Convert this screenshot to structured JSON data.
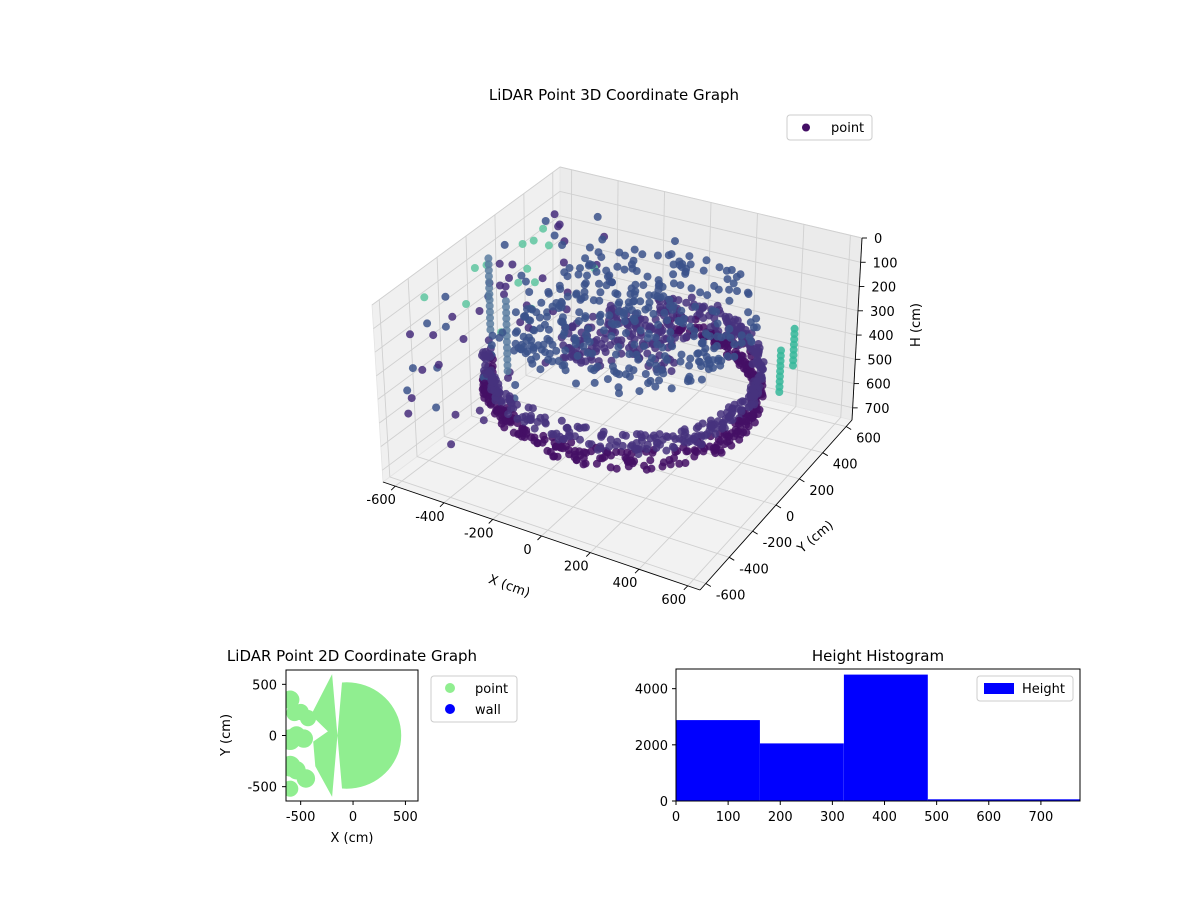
{
  "chart_data": [
    {
      "type": "scatter3d",
      "title": "LiDAR Point 3D Coordinate Graph",
      "xlabel": "X (cm)",
      "ylabel": "Y (cm)",
      "zlabel": "H (cm)",
      "xticks": [
        -600,
        -400,
        -200,
        0,
        200,
        400,
        600
      ],
      "yticks": [
        -600,
        -400,
        -200,
        0,
        200,
        400,
        600
      ],
      "zticks": [
        0,
        100,
        200,
        300,
        400,
        500,
        600,
        700
      ],
      "xlim": [
        -650,
        650
      ],
      "ylim": [
        -650,
        650
      ],
      "zlim": [
        0,
        750
      ],
      "z_inverted": true,
      "grid": true,
      "legend": {
        "placement": "top-right",
        "entries": [
          {
            "label": "point",
            "color": "#440f65"
          }
        ]
      },
      "structures": {
        "wall_ring": {
          "radius": 500,
          "angle_from_deg": -165,
          "angle_to_deg": 105,
          "h_from": 320,
          "h_to": 480
        },
        "floor_disc": {
          "radius": 500,
          "h": 120
        },
        "left_columns": [
          {
            "x": -500,
            "y": -100,
            "h_from": 0,
            "h_to": 300
          },
          {
            "x": -300,
            "y": -330,
            "h_from": 0,
            "h_to": 320
          }
        ],
        "right_columns": [
          {
            "x": 500,
            "y": 300,
            "h_from": 300,
            "h_to": 480
          },
          {
            "x": 480,
            "y": 450,
            "h_from": 300,
            "h_to": 460
          }
        ]
      }
    },
    {
      "type": "scatter",
      "title": "LiDAR Point 2D Coordinate Graph",
      "xlabel": "X (cm)",
      "ylabel": "Y (cm)",
      "xlim": [
        -640,
        620
      ],
      "ylim": [
        -640,
        640
      ],
      "xticks": [
        -500,
        0,
        500
      ],
      "yticks": [
        -500,
        0,
        500
      ],
      "series": [
        {
          "name": "point",
          "color": "#90ee90",
          "shape": "half-disc",
          "radius": 520
        },
        {
          "name": "wall",
          "color": "#0000ff"
        }
      ],
      "legend": {
        "placement": "outside-right",
        "entries": [
          {
            "label": "point",
            "color": "#90ee90"
          },
          {
            "label": "wall",
            "color": "#0000ff"
          }
        ]
      }
    },
    {
      "type": "histogram",
      "title": "Height Histogram",
      "xlim": [
        0,
        775
      ],
      "ylim": [
        0,
        4700
      ],
      "xticks": [
        0,
        100,
        200,
        300,
        400,
        500,
        600,
        700
      ],
      "yticks": [
        0,
        2000,
        4000
      ],
      "bins": [
        {
          "from": 0,
          "to": 161,
          "value": 2880
        },
        {
          "from": 161,
          "to": 322,
          "value": 2050
        },
        {
          "from": 322,
          "to": 483,
          "value": 4500
        },
        {
          "from": 483,
          "to": 775,
          "value": 60
        }
      ],
      "color": "#0000ff",
      "legend": {
        "placement": "top-right",
        "entries": [
          {
            "label": "Height",
            "color": "#0000ff"
          }
        ]
      }
    }
  ]
}
